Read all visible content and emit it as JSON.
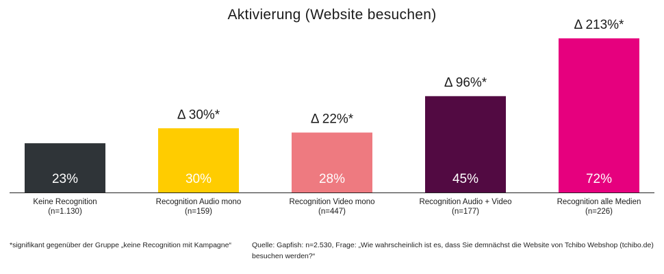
{
  "chart_data": {
    "type": "bar",
    "title": "Aktivierung (Website besuchen)",
    "categories": [
      "Keine Recognition",
      "Recognition Audio mono",
      "Recognition Video mono",
      "Recognition Audio + Video",
      "Recognition alle Medien"
    ],
    "sample_sizes": [
      "(n=1.130)",
      "(n=159)",
      "(n=447)",
      "(n=177)",
      "(n=226)"
    ],
    "values": [
      23,
      30,
      28,
      45,
      72
    ],
    "value_labels": [
      "23%",
      "30%",
      "28%",
      "45%",
      "72%"
    ],
    "delta_labels": [
      "",
      "Δ 30%*",
      "Δ 22%*",
      "Δ 96%*",
      "Δ 213%*"
    ],
    "colors": [
      "#2f3438",
      "#ffcc00",
      "#ee7a80",
      "#520a42",
      "#e6007e"
    ],
    "ylim": [
      0,
      72
    ],
    "grid": false,
    "legend": "none"
  },
  "footnotes": {
    "significance": "*signifikant gegenüber der Gruppe „keine Recognition mit Kampagne“",
    "source": "Quelle: Gapfish: n=2.530, Frage: „Wie wahrscheinlich ist es, dass Sie demnächst die Website von Tchibo Webshop (tchibo.de) besuchen werden?“"
  }
}
